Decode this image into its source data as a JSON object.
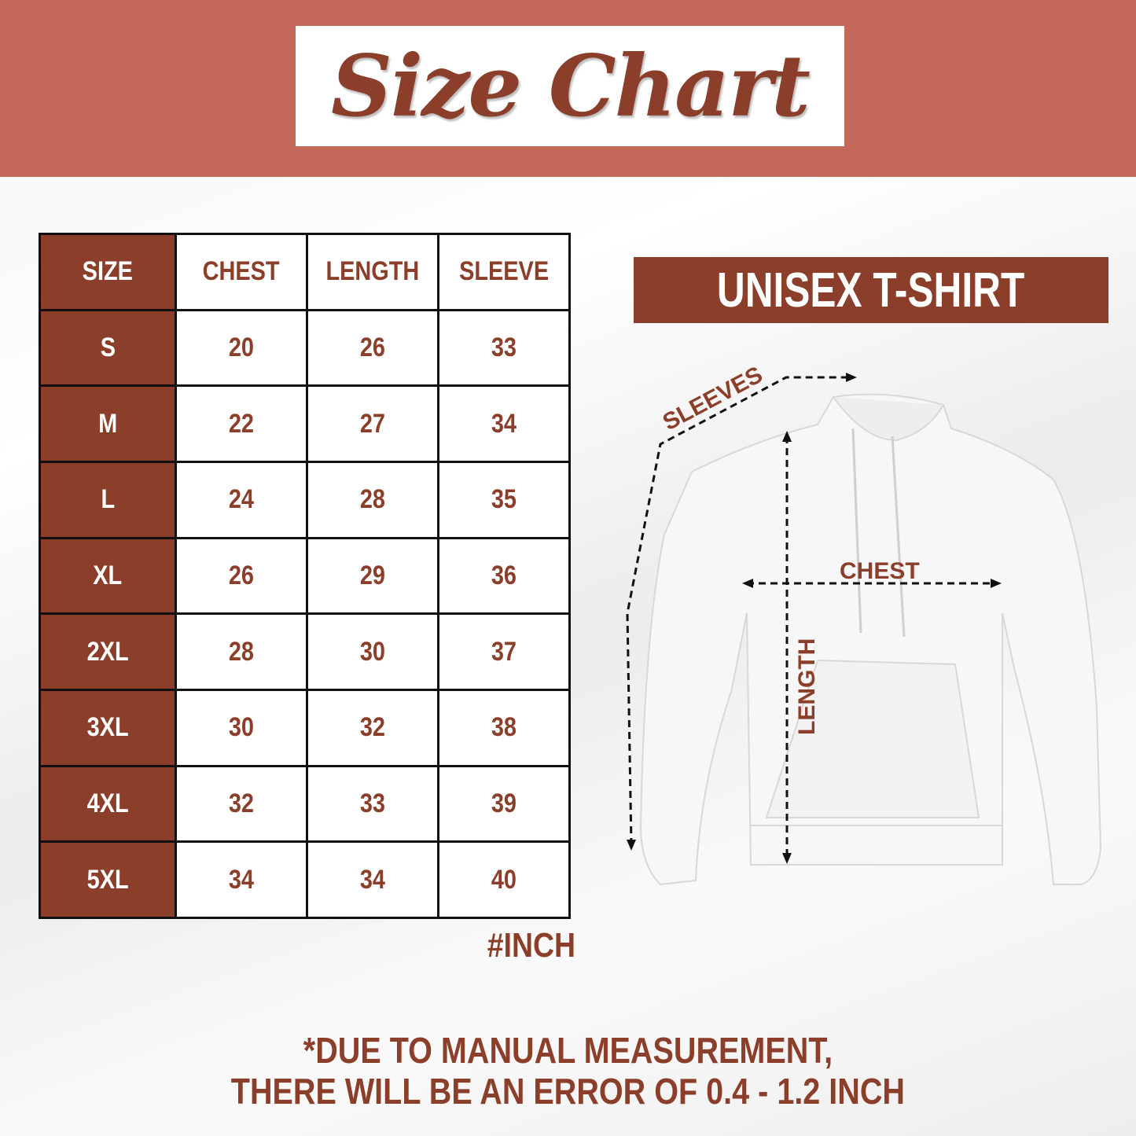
{
  "header": {
    "title": "Size Chart"
  },
  "table": {
    "headers": [
      "SIZE",
      "CHEST",
      "LENGTH",
      "SLEEVE"
    ],
    "rows": [
      [
        "S",
        "20",
        "26",
        "33"
      ],
      [
        "M",
        "22",
        "27",
        "34"
      ],
      [
        "L",
        "24",
        "28",
        "35"
      ],
      [
        "XL",
        "26",
        "29",
        "36"
      ],
      [
        "2XL",
        "28",
        "30",
        "37"
      ],
      [
        "3XL",
        "30",
        "32",
        "38"
      ],
      [
        "4XL",
        "32",
        "33",
        "39"
      ],
      [
        "5XL",
        "34",
        "34",
        "40"
      ]
    ],
    "unit": "#INCH"
  },
  "product": {
    "label": "UNISEX T-SHIRT"
  },
  "diagram": {
    "sleeves": "SLEEVES",
    "chest": "CHEST",
    "length": "LENGTH"
  },
  "note": {
    "line1": "*DUE TO MANUAL MEASUREMENT,",
    "line2": "THERE WILL BE AN ERROR OF 0.4 - 1.2 INCH"
  },
  "colors": {
    "brand": "#8b3f2a",
    "band": "#c4695a"
  }
}
